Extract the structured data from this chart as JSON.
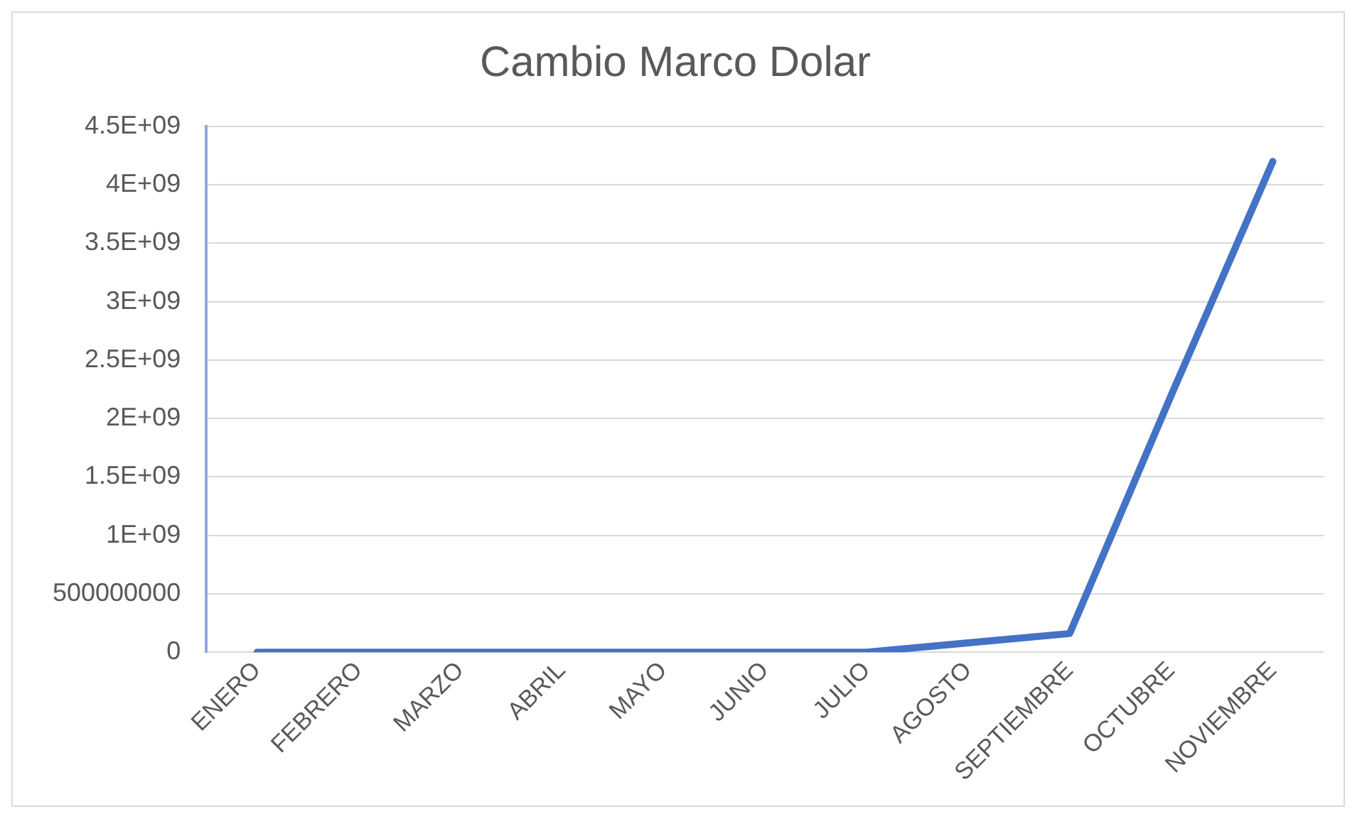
{
  "chart_data": {
    "type": "line",
    "title": "Cambio Marco Dolar",
    "categories": [
      "ENERO",
      "FEBRERO",
      "MARZO",
      "ABRIL",
      "MAYO",
      "JUNIO",
      "JULIO",
      "AGOSTO",
      "SEPTIEMBRE",
      "OCTUBRE",
      "NOVIEMBRE"
    ],
    "series": [
      {
        "color": "#4472c4",
        "values": [
          0,
          0,
          0,
          0,
          0,
          0,
          0,
          80000000,
          160000000,
          2200000000,
          4200000000
        ]
      }
    ],
    "ylim": [
      0,
      4500000000
    ],
    "yticks": [
      0,
      500000000,
      {
        "value": 1000000000,
        "label": "1E+09"
      },
      {
        "value": 1500000000,
        "label": "1.5E+09"
      },
      {
        "value": 2000000000,
        "label": "2E+09"
      },
      {
        "value": 2500000000,
        "label": "2.5E+09"
      },
      {
        "value": 3000000000,
        "label": "3E+09"
      },
      {
        "value": 3500000000,
        "label": "3.5E+09"
      },
      {
        "value": 4000000000,
        "label": "4E+09"
      },
      {
        "value": 4500000000,
        "label": "4.5E+09"
      }
    ],
    "grid": "y",
    "legend": false,
    "marker": "none",
    "line_style": "solid"
  }
}
